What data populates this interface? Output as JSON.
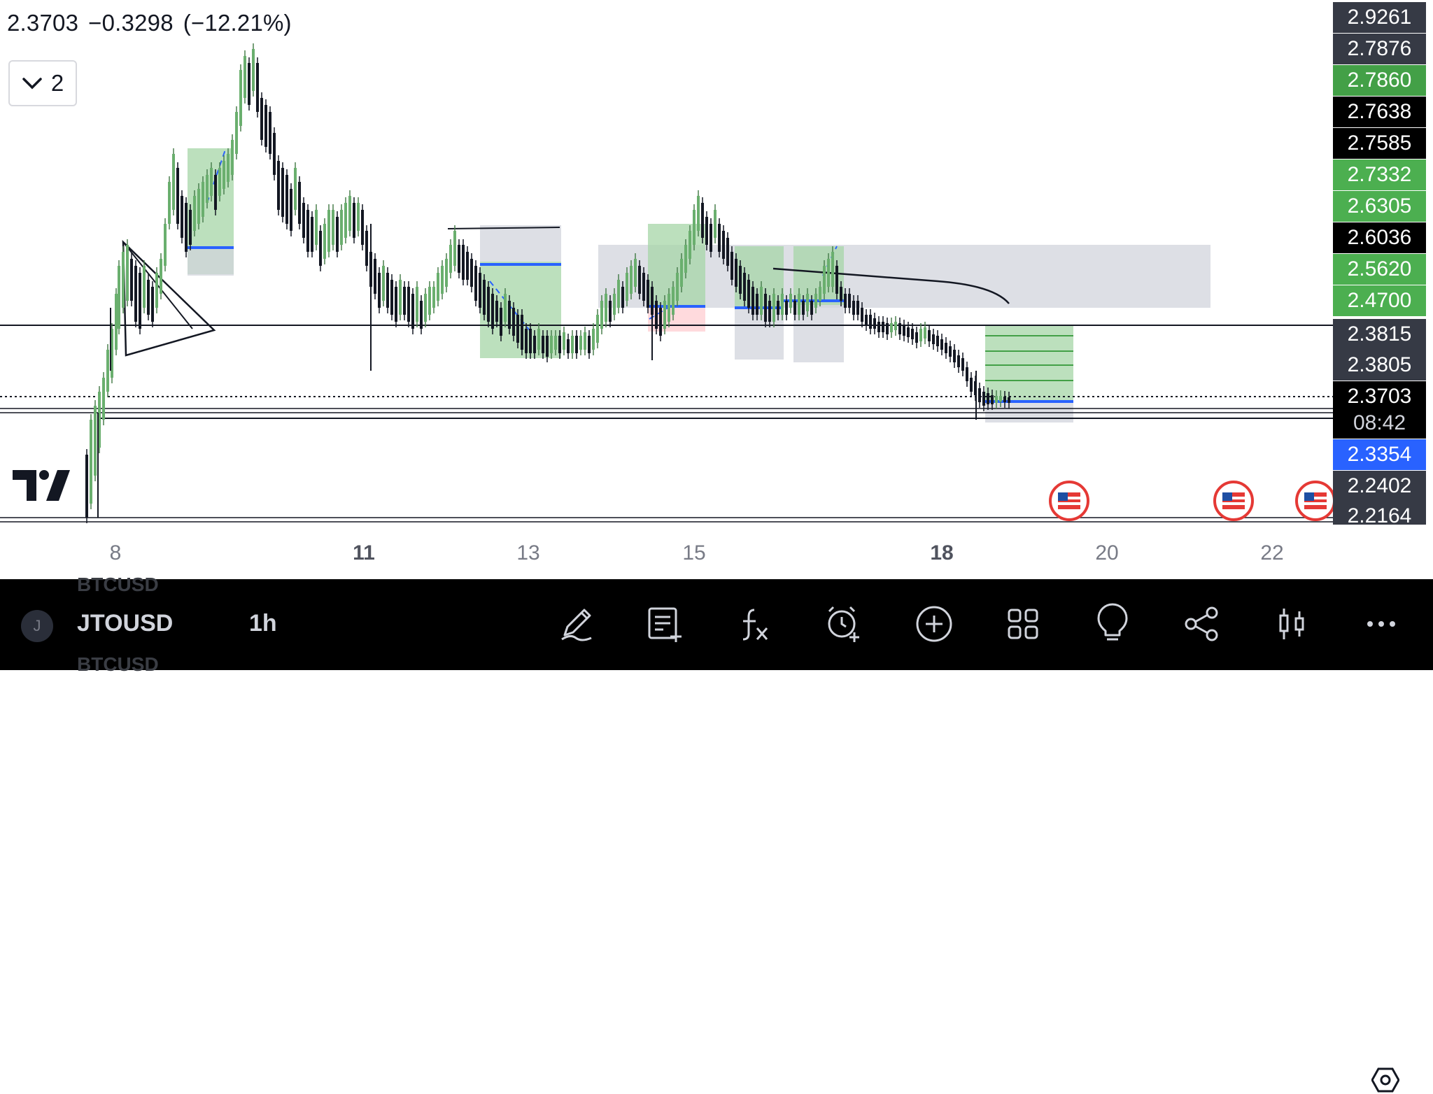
{
  "header": {
    "last_price": "2.3703",
    "change": "−0.3298",
    "change_pct": "(−12.21%)",
    "collapse_count": "2"
  },
  "price_scale": [
    {
      "value": "2.9261",
      "bg": "#363a45",
      "fg": "#ffffff",
      "y": 2.9261
    },
    {
      "value": "2.7876",
      "bg": "#363a45",
      "fg": "#ffffff",
      "y": 2.7876
    },
    {
      "value": "2.7860",
      "bg": "#43a047",
      "fg": "#ffffff",
      "y": 2.786
    },
    {
      "value": "2.7638",
      "bg": "#000000",
      "fg": "#ffffff",
      "y": 2.7638
    },
    {
      "value": "2.7585",
      "bg": "#000000",
      "fg": "#ffffff",
      "y": 2.7585
    },
    {
      "value": "2.7332",
      "bg": "#4caf50",
      "fg": "#ffffff",
      "y": 2.7332
    },
    {
      "value": "2.6305",
      "bg": "#4caf50",
      "fg": "#ffffff",
      "y": 2.6305
    },
    {
      "value": "2.6036",
      "bg": "#000000",
      "fg": "#ffffff",
      "y": 2.6036
    },
    {
      "value": "2.5620",
      "bg": "#4caf50",
      "fg": "#ffffff",
      "y": 2.562
    },
    {
      "value": "2.4700",
      "bg": "#4caf50",
      "fg": "#ffffff",
      "y": 2.47
    },
    {
      "value": "2.3815",
      "bg": "#363a45",
      "fg": "#ffffff",
      "y": 2.3815
    },
    {
      "value": "2.3805",
      "bg": "#363a45",
      "fg": "#ffffff",
      "y": 2.3805
    },
    {
      "value": "2.3703",
      "bg": "#000000",
      "fg": "#ffffff",
      "y": 2.3703
    },
    {
      "value": "08:42",
      "bg": "#000000",
      "fg": "#d1d4dc",
      "y": 2.3703
    },
    {
      "value": "2.3354",
      "bg": "#2962ff",
      "fg": "#ffffff",
      "y": 2.3354
    },
    {
      "value": "2.2402",
      "bg": "#363a45",
      "fg": "#ffffff",
      "y": 2.2402
    },
    {
      "value": "2.2164",
      "bg": "#363a45",
      "fg": "#ffffff",
      "y": 2.2164
    }
  ],
  "time_axis": [
    {
      "label": "8",
      "bold": false
    },
    {
      "label": "11",
      "bold": true
    },
    {
      "label": "13",
      "bold": false
    },
    {
      "label": "15",
      "bold": false
    },
    {
      "label": "18",
      "bold": true
    },
    {
      "label": "20",
      "bold": false
    },
    {
      "label": "22",
      "bold": false
    }
  ],
  "toolbar": {
    "ghost_symbol": "BTCUSD",
    "avatar_letter": "J",
    "symbol": "JTOUSD",
    "interval": "1h",
    "icons": [
      "drawing-pen-icon",
      "add-note-icon",
      "indicators-fx-icon",
      "add-alert-icon",
      "add-circle-icon",
      "layouts-grid-icon",
      "ideas-lightbulb-icon",
      "share-icon",
      "chart-type-candles-icon",
      "more-dots-icon"
    ]
  },
  "colors": {
    "up": "#26a69a",
    "up_body": "#4caf50",
    "down": "#131722",
    "target_zone": "#a5d6a7",
    "stop_zone": "#ffcdd2",
    "gray_zone": "#d1d4dc",
    "entry_line": "#2962ff"
  }
}
